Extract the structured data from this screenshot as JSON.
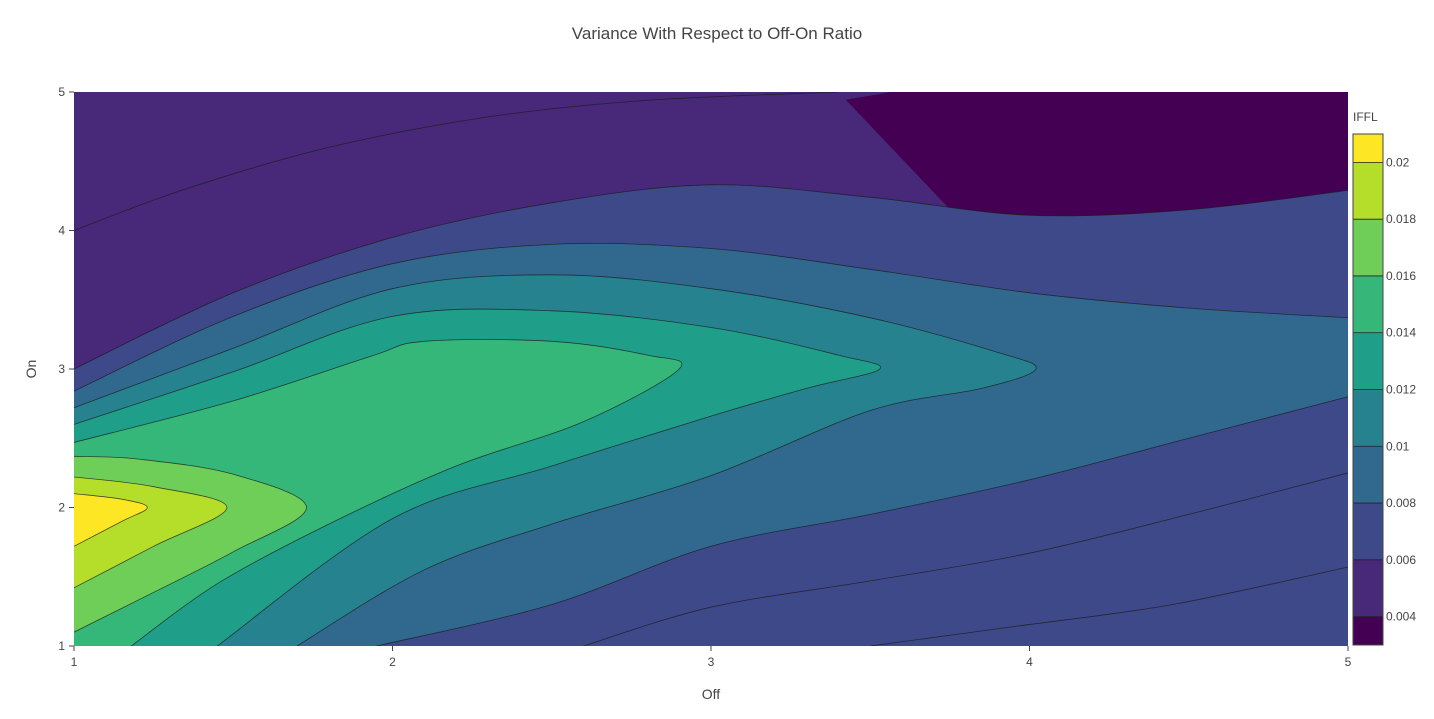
{
  "chart_data": {
    "type": "contour",
    "title": "Variance With Respect to Off-On Ratio",
    "xlabel": "Off",
    "ylabel": "On",
    "xlim": [
      1,
      5
    ],
    "ylim": [
      1,
      5
    ],
    "x_ticks": [
      "1",
      "2",
      "3",
      "4",
      "5"
    ],
    "y_ticks": [
      "1",
      "2",
      "3",
      "4",
      "5"
    ],
    "colorbar": {
      "title": "IFFL",
      "range": [
        0.003,
        0.021
      ],
      "tick_values": [
        0.004,
        0.006,
        0.008,
        0.01,
        0.012,
        0.014,
        0.016,
        0.018,
        0.02
      ],
      "tick_labels": [
        "0.004",
        "0.006",
        "0.008",
        "0.01",
        "0.012",
        "0.014",
        "0.016",
        "0.018",
        "0.02"
      ],
      "colors": [
        "#440154",
        "#482878",
        "#3e4989",
        "#31688e",
        "#26828e",
        "#1f9e89",
        "#35b779",
        "#6ece58",
        "#b5de2b",
        "#fde725"
      ]
    },
    "peak": {
      "x": 1,
      "y": 2,
      "value": 0.021
    },
    "contour_levels": [
      {
        "level": 0.004,
        "points": [
          [
            1.0,
            4.0
          ],
          [
            1.35,
            4.3
          ],
          [
            1.8,
            4.6
          ],
          [
            2.3,
            4.82
          ],
          [
            2.8,
            4.94
          ],
          [
            3.4,
            5.0
          ]
        ]
      },
      {
        "level": 0.004,
        "points": [
          [
            3.5,
            1.0
          ],
          [
            3.95,
            1.14
          ],
          [
            4.45,
            1.3
          ],
          [
            5.0,
            1.57
          ]
        ]
      },
      {
        "level": 0.006,
        "points": [
          [
            1.0,
            3.0
          ],
          [
            1.5,
            3.55
          ],
          [
            2.0,
            3.95
          ],
          [
            2.5,
            4.2
          ],
          [
            3.0,
            4.33
          ],
          [
            3.5,
            4.24
          ],
          [
            4.0,
            4.11
          ],
          [
            4.5,
            4.15
          ],
          [
            5.0,
            4.29
          ]
        ]
      },
      {
        "level": 0.006,
        "points": [
          [
            2.6,
            1.0
          ],
          [
            3.0,
            1.28
          ],
          [
            3.5,
            1.47
          ],
          [
            4.0,
            1.67
          ],
          [
            4.5,
            1.95
          ],
          [
            5.0,
            2.25
          ]
        ]
      },
      {
        "level": 0.008,
        "points": [
          [
            1.0,
            2.84
          ],
          [
            1.5,
            3.38
          ],
          [
            2.0,
            3.76
          ],
          [
            2.5,
            3.9
          ],
          [
            3.0,
            3.87
          ],
          [
            3.5,
            3.72
          ],
          [
            4.0,
            3.55
          ],
          [
            4.5,
            3.44
          ],
          [
            5.0,
            3.37
          ]
        ]
      },
      {
        "level": 0.008,
        "points": [
          [
            1.95,
            1.0
          ],
          [
            2.5,
            1.3
          ],
          [
            3.0,
            1.72
          ],
          [
            3.5,
            1.95
          ],
          [
            4.0,
            2.2
          ],
          [
            4.5,
            2.5
          ],
          [
            5.0,
            2.8
          ]
        ]
      },
      {
        "level": 0.01,
        "points": [
          [
            1.0,
            2.72
          ],
          [
            1.5,
            3.15
          ],
          [
            2.0,
            3.58
          ],
          [
            2.5,
            3.68
          ],
          [
            3.0,
            3.58
          ],
          [
            3.5,
            3.37
          ],
          [
            3.9,
            3.12
          ],
          [
            4.02,
            3.0
          ],
          [
            3.85,
            2.86
          ],
          [
            3.5,
            2.7
          ],
          [
            3.0,
            2.23
          ],
          [
            2.5,
            1.88
          ],
          [
            2.1,
            1.55
          ],
          [
            1.7,
            1.0
          ]
        ]
      },
      {
        "level": 0.012,
        "points": [
          [
            1.0,
            2.6
          ],
          [
            1.5,
            2.98
          ],
          [
            2.0,
            3.38
          ],
          [
            2.5,
            3.42
          ],
          [
            3.0,
            3.3
          ],
          [
            3.4,
            3.1
          ],
          [
            3.53,
            3.0
          ],
          [
            3.3,
            2.86
          ],
          [
            3.0,
            2.66
          ],
          [
            2.5,
            2.3
          ],
          [
            2.0,
            1.92
          ],
          [
            1.45,
            1.0
          ]
        ]
      },
      {
        "level": 0.014,
        "points": [
          [
            1.0,
            2.47
          ],
          [
            1.5,
            2.77
          ],
          [
            1.93,
            3.09
          ],
          [
            2.1,
            3.2
          ],
          [
            2.5,
            3.2
          ],
          [
            2.8,
            3.1
          ],
          [
            2.9,
            3.0
          ],
          [
            2.6,
            2.62
          ],
          [
            2.2,
            2.3
          ],
          [
            1.8,
            1.88
          ],
          [
            1.45,
            1.45
          ],
          [
            1.18,
            1.0
          ]
        ]
      },
      {
        "level": 0.016,
        "points": [
          [
            1.0,
            2.37
          ],
          [
            1.2,
            2.35
          ],
          [
            1.5,
            2.24
          ],
          [
            1.73,
            2.0
          ],
          [
            1.5,
            1.68
          ],
          [
            1.2,
            1.33
          ],
          [
            1.0,
            1.1
          ]
        ]
      },
      {
        "level": 0.018,
        "points": [
          [
            1.0,
            2.22
          ],
          [
            1.25,
            2.15
          ],
          [
            1.48,
            2.0
          ],
          [
            1.25,
            1.72
          ],
          [
            1.0,
            1.42
          ]
        ]
      },
      {
        "level": 0.02,
        "points": [
          [
            1.0,
            2.1
          ],
          [
            1.15,
            2.06
          ],
          [
            1.23,
            2.0
          ],
          [
            1.15,
            1.9
          ],
          [
            1.0,
            1.72
          ]
        ]
      }
    ]
  }
}
